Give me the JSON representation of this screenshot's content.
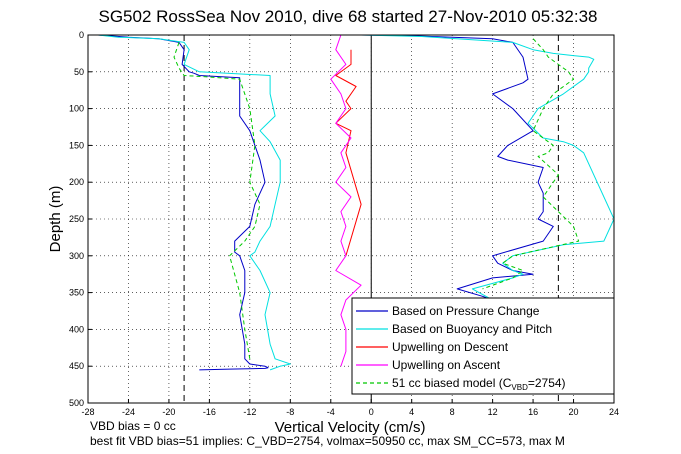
{
  "chart_data": {
    "type": "line",
    "title": "SG502 RossSea Nov 2010, dive 68 started 27-Nov-2010 05:32:38",
    "xlabel": "Vertical Velocity (cm/s)",
    "ylabel": "Depth (m)",
    "xlim": [
      -28,
      24
    ],
    "ylim": [
      0,
      500
    ],
    "y_reversed": true,
    "xticks": [
      "-28",
      "-24",
      "-20",
      "-16",
      "-12",
      "-8",
      "-4",
      "0",
      "4",
      "8",
      "12",
      "16",
      "20",
      "24"
    ],
    "yticks": [
      "0",
      "50",
      "100",
      "150",
      "200",
      "250",
      "300",
      "350",
      "400",
      "450",
      "500"
    ],
    "grid": true,
    "legend_placement": "bottom-right",
    "reference_lines": [
      {
        "x": -18.5,
        "style": "dashed",
        "color": "#000000"
      },
      {
        "x": 18.5,
        "style": "dashed",
        "color": "#000000"
      },
      {
        "x": 0,
        "style": "solid",
        "color": "#000000"
      }
    ],
    "series": [
      {
        "name": "Based on Pressure Change",
        "color": "#0000c8",
        "segments": [
          {
            "x": [
              -27,
              -24,
              -21,
              -19,
              -18.5,
              -18.7,
              -18,
              -17.5,
              -17,
              -13,
              -13,
              -13,
              -12,
              -11.5,
              -11,
              -10.5,
              -11.5,
              -12,
              -13.5,
              -13.5,
              -13,
              -12.5,
              -12.5,
              -13,
              -12.5,
              -12.5,
              -12,
              -10.5,
              -10.2,
              -10.5,
              -14,
              -17
            ],
            "y": [
              0,
              3,
              5,
              10,
              20,
              40,
              50,
              52,
              55,
              58,
              80,
              110,
              130,
              150,
              170,
              200,
              230,
              260,
              280,
              295,
              300,
              320,
              350,
              380,
              420,
              440,
              447,
              450,
              452,
              453,
              454,
              455
            ]
          },
          {
            "x": [
              -1,
              4,
              12,
              14,
              15,
              15.5,
              15,
              12,
              14,
              16,
              13.5,
              12.5,
              13.5,
              17,
              16.5,
              17,
              17,
              16.5,
              18,
              17,
              12,
              12.5,
              14,
              16,
              12,
              8.5,
              11,
              12
            ],
            "y": [
              0,
              1,
              5,
              10,
              30,
              60,
              65,
              80,
              100,
              130,
              150,
              165,
              170,
              180,
              200,
              215,
              240,
              250,
              260,
              280,
              300,
              310,
              320,
              325,
              330,
              345,
              355,
              360
            ]
          }
        ]
      },
      {
        "name": "Based on Buoyancy and Pitch",
        "color": "#00e0e0",
        "segments": [
          {
            "x": [
              -27,
              -25,
              -21,
              -18.5,
              -18,
              -18.5,
              -17,
              -10,
              -10,
              -9.5,
              -11,
              -10,
              -9,
              -9,
              -9.5,
              -10,
              -11,
              -11.5,
              -12,
              -11,
              -10,
              -10.5,
              -10,
              -9.5,
              -8,
              -9,
              -10
            ],
            "y": [
              0,
              3,
              5,
              10,
              20,
              40,
              50,
              55,
              80,
              110,
              130,
              145,
              170,
              200,
              230,
              260,
              280,
              295,
              300,
              320,
              350,
              380,
              420,
              440,
              447,
              450,
              455
            ]
          },
          {
            "x": [
              -1,
              5,
              14,
              16,
              18,
              20,
              21.5,
              22,
              21.5,
              21.5,
              21,
              19,
              16.5,
              15.5,
              17,
              19,
              20,
              21,
              24,
              23,
              19,
              14,
              13,
              14,
              15,
              14,
              10,
              12
            ],
            "y": [
              0,
              2,
              10,
              20,
              25,
              28,
              30,
              33,
              45,
              50,
              60,
              80,
              100,
              120,
              140,
              145,
              150,
              160,
              250,
              280,
              285,
              300,
              310,
              320,
              325,
              330,
              345,
              360
            ]
          }
        ]
      },
      {
        "name": "Upwelling on Descent",
        "color": "#ff0000",
        "segments": [
          {
            "x": [
              -2,
              -2,
              -3.5,
              -1.5,
              -2.5,
              -2,
              -3.5,
              -2,
              -2.5,
              -1,
              -2.5
            ],
            "y": [
              20,
              40,
              55,
              70,
              90,
              100,
              120,
              130,
              160,
              230,
              300
            ]
          }
        ]
      },
      {
        "name": "Upwelling on Ascent",
        "color": "#ff00ff",
        "segments": [
          {
            "x": [
              -3,
              -3.5,
              -2.5,
              -4,
              -3,
              -2.5,
              -3.5,
              -2,
              -3,
              -2.5,
              -3.5,
              -2,
              -3,
              -2.5,
              -3,
              -2.5,
              -3.5,
              -1,
              -2.5,
              -3,
              -2.5,
              -2.5,
              -3
            ],
            "y": [
              0,
              20,
              40,
              60,
              80,
              100,
              120,
              140,
              160,
              180,
              200,
              220,
              240,
              260,
              280,
              300,
              320,
              340,
              360,
              380,
              400,
              430,
              450
            ]
          }
        ]
      },
      {
        "name": "51 cc biased model (C",
        "name_sub": "VBD",
        "name_tail": "=2754)",
        "color": "#00c800",
        "dashed": true,
        "segments": [
          {
            "x": [
              -19,
              -19.5,
              -19,
              -18.5,
              -16,
              -13,
              -12,
              -11.5,
              -12,
              -11,
              -11.5,
              -12.5,
              -14,
              -13,
              -12.5,
              -12
            ],
            "y": [
              10,
              30,
              45,
              55,
              57,
              60,
              100,
              150,
              200,
              230,
              260,
              280,
              300,
              350,
              400,
              440
            ]
          },
          {
            "x": [
              16,
              17,
              17.5,
              19.5,
              20,
              18,
              17,
              16,
              18,
              17.5,
              16.5,
              18.5,
              17,
              20,
              20.5,
              14,
              13,
              15,
              14,
              11
            ],
            "y": [
              5,
              20,
              30,
              50,
              60,
              80,
              100,
              130,
              150,
              160,
              165,
              190,
              220,
              260,
              280,
              300,
              310,
              320,
              330,
              345
            ]
          }
        ]
      }
    ]
  },
  "notes": {
    "line1": "VBD bias = 0 cc",
    "line2": "best fit VBD bias=51 implies: C_VBD=2754, volmax=50950 cc, max SM_CC=573, max M"
  }
}
